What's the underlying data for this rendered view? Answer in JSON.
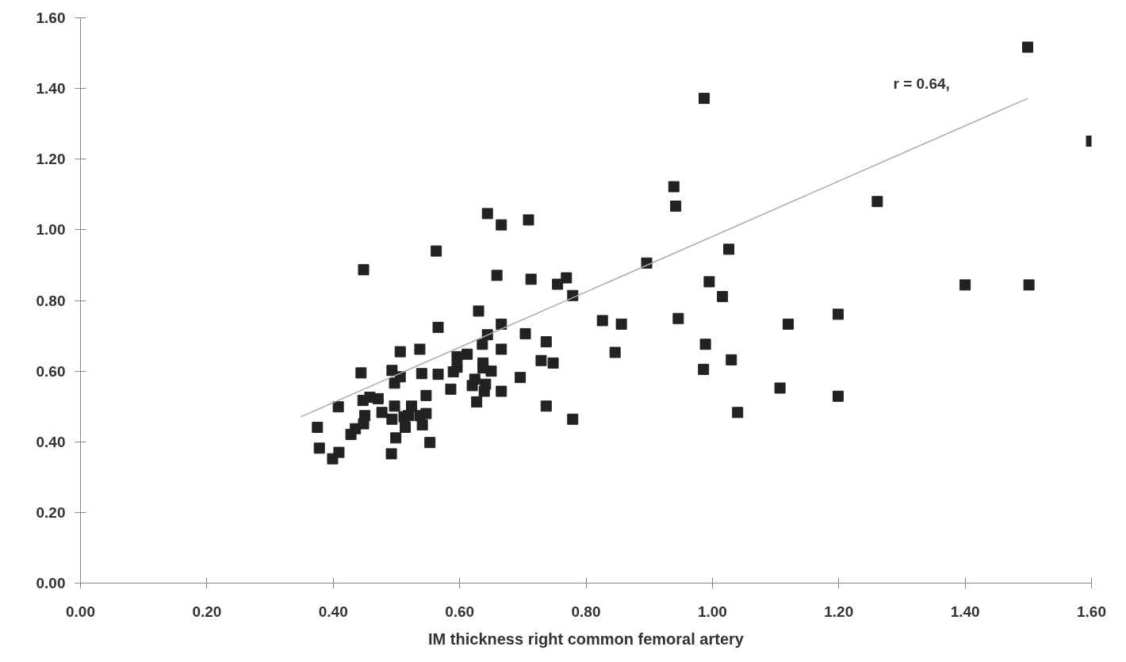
{
  "chart_data": {
    "type": "scatter",
    "xlabel": "IM thickness right common femoral artery",
    "xlim": [
      0,
      1.6
    ],
    "ylim": [
      0,
      1.6
    ],
    "xticks": [
      {
        "value": 0,
        "label": "0.00"
      },
      {
        "value": 0.2,
        "label": "0.20"
      },
      {
        "value": 0.4,
        "label": "0.40"
      },
      {
        "value": 0.6,
        "label": "0.60"
      },
      {
        "value": 0.8,
        "label": "0.80"
      },
      {
        "value": 1.0,
        "label": "1.00"
      },
      {
        "value": 1.2,
        "label": "1.20"
      },
      {
        "value": 1.4,
        "label": "1.40"
      },
      {
        "value": 1.6,
        "label": "1.60"
      }
    ],
    "yticks": [
      {
        "value": 0,
        "label": "0.00"
      },
      {
        "value": 0.2,
        "label": "0.20"
      },
      {
        "value": 0.4,
        "label": "0.40"
      },
      {
        "value": 0.6,
        "label": "0.60"
      },
      {
        "value": 0.8,
        "label": "0.80"
      },
      {
        "value": 1.0,
        "label": "1.00"
      },
      {
        "value": 1.2,
        "label": "1.20"
      },
      {
        "value": 1.4,
        "label": "1.40"
      },
      {
        "value": 1.6,
        "label": "1.60"
      }
    ],
    "annotations": [
      "r = 0.64,"
    ],
    "series": [
      {
        "marker": "square",
        "color": "#222222",
        "x": [
          0.375,
          0.378,
          0.399,
          0.409,
          0.408,
          0.428,
          0.435,
          0.448,
          0.45,
          0.447,
          0.458,
          0.471,
          0.444,
          0.448,
          0.477,
          0.492,
          0.493,
          0.493,
          0.497,
          0.497,
          0.499,
          0.506,
          0.506,
          0.514,
          0.512,
          0.519,
          0.524,
          0.537,
          0.54,
          0.537,
          0.541,
          0.547,
          0.547,
          0.553,
          0.563,
          0.566,
          0.566,
          0.586,
          0.59,
          0.596,
          0.596,
          0.612,
          0.62,
          0.624,
          0.627,
          0.63,
          0.636,
          0.637,
          0.637,
          0.641,
          0.639,
          0.644,
          0.644,
          0.65,
          0.659,
          0.666,
          0.666,
          0.666,
          0.666,
          0.696,
          0.704,
          0.709,
          0.713,
          0.729,
          0.737,
          0.737,
          0.748,
          0.755,
          0.769,
          0.779,
          0.779,
          0.826,
          0.846,
          0.856,
          0.896,
          0.987,
          0.939,
          0.942,
          1.261,
          1.499,
          1.6,
          1.026,
          0.995,
          1.016,
          0.946,
          1.12,
          1.199,
          0.989,
          1.03,
          0.986,
          1.107,
          1.199,
          1.04,
          1.4,
          1.501
        ],
        "values": [
          0.441,
          0.382,
          0.352,
          0.37,
          0.499,
          0.421,
          0.437,
          0.451,
          0.474,
          0.517,
          0.526,
          0.522,
          0.595,
          0.887,
          0.483,
          0.366,
          0.464,
          0.602,
          0.566,
          0.501,
          0.411,
          0.584,
          0.655,
          0.441,
          0.471,
          0.474,
          0.501,
          0.662,
          0.593,
          0.474,
          0.448,
          0.48,
          0.531,
          0.398,
          0.94,
          0.724,
          0.591,
          0.549,
          0.598,
          0.611,
          0.641,
          0.648,
          0.559,
          0.577,
          0.513,
          0.77,
          0.676,
          0.623,
          0.609,
          0.563,
          0.543,
          0.703,
          1.046,
          0.6,
          0.871,
          1.014,
          0.733,
          0.662,
          0.543,
          0.582,
          0.706,
          1.028,
          0.86,
          0.63,
          0.683,
          0.501,
          0.623,
          0.846,
          0.864,
          0.814,
          0.464,
          0.743,
          0.653,
          0.733,
          0.906,
          1.372,
          1.122,
          1.067,
          1.08,
          1.517,
          1.251,
          0.945,
          0.853,
          0.811,
          0.749,
          0.733,
          0.761,
          0.676,
          0.632,
          0.605,
          0.552,
          0.529,
          0.483,
          0.844,
          0.844
        ]
      },
      {
        "type": "line",
        "color": "#aaaaaa",
        "line_style": "solid",
        "x": [
          0.349,
          1.499
        ],
        "values": [
          0.471,
          1.372
        ]
      }
    ]
  }
}
